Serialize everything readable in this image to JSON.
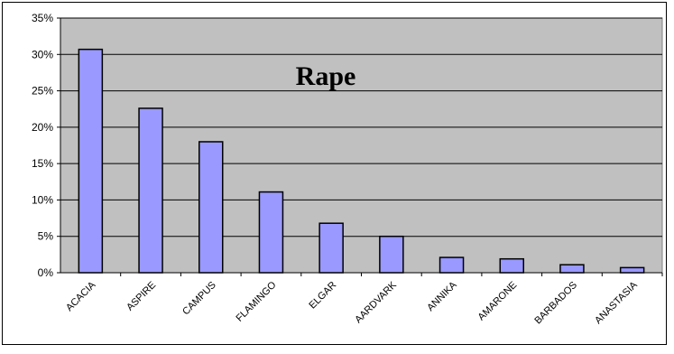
{
  "chart_data": {
    "type": "bar",
    "title": "Rape",
    "categories": [
      "ACACIA",
      "ASPIRE",
      "CAMPUS",
      "FLAMINGO",
      "ELGAR",
      "AARDVARK",
      "ANNIKA",
      "AMARONE",
      "BARBADOS",
      "ANASTASIA"
    ],
    "values": [
      30.7,
      22.6,
      18.0,
      11.1,
      6.8,
      5.0,
      2.1,
      1.9,
      1.1,
      0.7
    ],
    "yticks": [
      "0%",
      "5%",
      "10%",
      "15%",
      "20%",
      "25%",
      "30%",
      "35%"
    ],
    "ylim": [
      0,
      35
    ],
    "grid": true,
    "legend": "none",
    "colors": {
      "plot_background": "#c0c0c0",
      "bar_fill": "#9999ff",
      "bar_stroke": "#000000",
      "gridline": "#000000"
    }
  }
}
